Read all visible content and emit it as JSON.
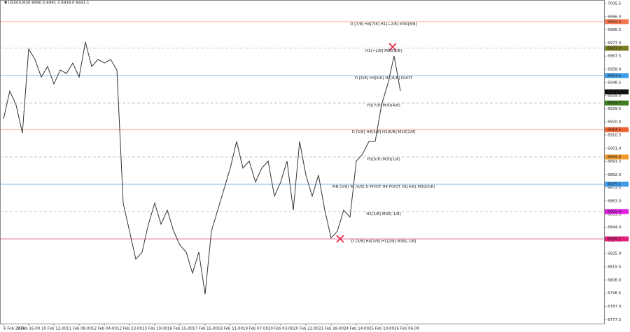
{
  "chart_data": {
    "type": "line",
    "title": "▼ US500,M30 6990.0 6991.3 6939.0 6941.1",
    "categories": [
      "6 Feb 2026",
      null,
      null,
      null,
      "9 Feb 16:00",
      null,
      null,
      null,
      "10 Feb 12:00",
      null,
      null,
      null,
      "11 Feb 08:00",
      null,
      null,
      null,
      "12 Feb 04:00",
      null,
      null,
      null,
      "12 Feb 23:00",
      null,
      null,
      null,
      "13 Feb 19:00",
      null,
      null,
      null,
      "16 Feb 15:00",
      null,
      null,
      null,
      "17 Feb 15:00",
      null,
      null,
      null,
      "18 Feb 11:00",
      null,
      null,
      null,
      "19 Feb 07:00",
      null,
      null,
      null,
      "20 Feb 03:00",
      null,
      null,
      null,
      "20 Feb 22:00",
      null,
      null,
      null,
      "23 Feb 18:00",
      null,
      null,
      null,
      "24 Feb 14:00",
      null,
      null,
      null,
      "25 Feb 10:00",
      null,
      null,
      null,
      "26 Feb 06:00"
    ],
    "series": [
      {
        "name": "US500,M30",
        "color": "#333333",
        "values": [
          6922.1,
          6942.3,
          6932.2,
          6912.0,
          6972.7,
          6965.1,
          6952.4,
          6960.0,
          6947.4,
          6957.5,
          6955.0,
          6962.5,
          6952.4,
          6977.7,
          6960.0,
          6965.1,
          6962.5,
          6965.1,
          6957.5,
          6861.5,
          6841.3,
          6821.1,
          6826.1,
          6846.3,
          6861.5,
          6846.3,
          6856.4,
          6841.3,
          6831.2,
          6826.1,
          6810.9,
          6826.1,
          6795.8,
          6841.3,
          6856.4,
          6871.6,
          6886.8,
          6906.0,
          6886.8,
          6891.8,
          6876.7,
          6886.8,
          6891.8,
          6866.5,
          6876.7,
          6891.8,
          6856.4,
          6906.0,
          6881.7,
          6866.5,
          6881.7,
          6856.4,
          6836.3,
          6841.3,
          6856.4,
          6851.4,
          6891.8,
          6896.9,
          6906.0,
          6906.0,
          6932.2,
          6947.4,
          6967.6,
          6942.3,
          null
        ]
      }
    ],
    "ylim": [
      6774.6,
      7008.0
    ],
    "yticks": [
      7005.5,
      {
        "value": 6996,
        "label": "6996.0"
      },
      6986.5,
      {
        "value": 6977,
        "label": "6977.0"
      },
      6967.5,
      {
        "value": 6958,
        "label": "6958.0"
      },
      6948.5,
      {
        "value": 6939,
        "label": "6939.0"
      },
      6929.5,
      {
        "value": 6920,
        "label": "6920.0"
      },
      6910.5,
      {
        "value": 6901,
        "label": "6901.0"
      },
      6891.5,
      {
        "value": 6882,
        "label": "6882.0"
      },
      6872.5,
      {
        "value": 6863,
        "label": "6863.0"
      },
      6853.5,
      {
        "value": 6844,
        "label": "6844.0"
      },
      6834.5,
      {
        "value": 6825,
        "label": "6825.0"
      },
      6815.5,
      {
        "value": 6806,
        "label": "6806.0"
      },
      6796.5,
      {
        "value": 6787,
        "label": "6787.0"
      },
      6777.5
    ],
    "grid": false,
    "current_price": 6941.8,
    "levels": [
      {
        "text": "D [7/8] H4[7/8] H1[+2/8] M30[8/8]",
        "value": 6992.4,
        "color": "#f4774f",
        "style": "solid"
      },
      {
        "text": "H1[+1/8] M30[8/8]",
        "value": 6973.2,
        "color": "#7a7a20",
        "style": "dashed"
      },
      {
        "text": "D [6/8] H4[6/8] H1[8/8] PIVOT",
        "value": 6953.5,
        "color": "#3d9be9",
        "style": "solid"
      },
      {
        "text": "H1[7/8] M30[4/8]",
        "value": 6933.7,
        "color": "#3f7f1f",
        "style": "dashed"
      },
      {
        "text": "D [5/8] H4[5/8] H1[6/8] M30[2/8]",
        "value": 6914.5,
        "color": "#f0602f",
        "style": "solid"
      },
      {
        "text": "H1[5/8] M30[1/8]",
        "value": 6894.8,
        "color": "#f09a2a",
        "style": "dashed"
      },
      {
        "text": "MN [0/8] W [0/8] D PIVOT H4 PIVOT H1[4/8] M30[0/8]",
        "value": 6875.1,
        "color": "#3d9be9",
        "style": "solid"
      },
      {
        "text": "H1[3/8] M30[-1/8]",
        "value": 6855.4,
        "color": "#e020e0",
        "style": "dashed"
      },
      {
        "text": "D [3/8] H4[3/8] H1[2/8] M30[-2/8]",
        "value": 6835.7,
        "color": "#e0207a",
        "style": "solid"
      }
    ]
  }
}
